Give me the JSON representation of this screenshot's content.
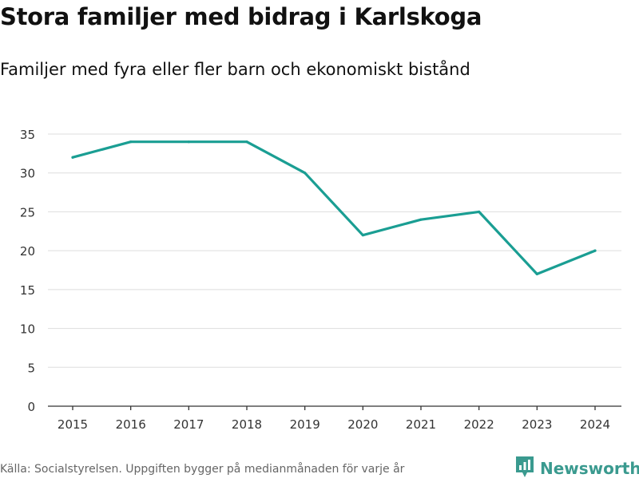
{
  "chart_data": {
    "type": "line",
    "title": "Stora familjer med bidrag i Karlskoga",
    "subtitle": "Familjer med fyra eller fler barn och ekonomiskt bistånd",
    "x": [
      "2015",
      "2016",
      "2017",
      "2018",
      "2019",
      "2020",
      "2021",
      "2022",
      "2023",
      "2024"
    ],
    "series": [
      {
        "name": "Familjer",
        "values": [
          32,
          34,
          34,
          34,
          30,
          22,
          24,
          25,
          17,
          20
        ]
      }
    ],
    "yticks": [
      0,
      5,
      10,
      15,
      20,
      25,
      30,
      35
    ],
    "ylim": [
      0,
      35
    ],
    "xlabel": "",
    "ylabel": "",
    "grid": true,
    "legend": "none",
    "line_color": "#1a9e93"
  },
  "footer": {
    "source": "Källa: Socialstyrelsen. Uppgiften bygger på medianmånaden för varje år",
    "brand": "Newsworthy"
  },
  "colors": {
    "brand": "#3a9a8f",
    "grid": "#dddddd",
    "axis": "#333333"
  }
}
